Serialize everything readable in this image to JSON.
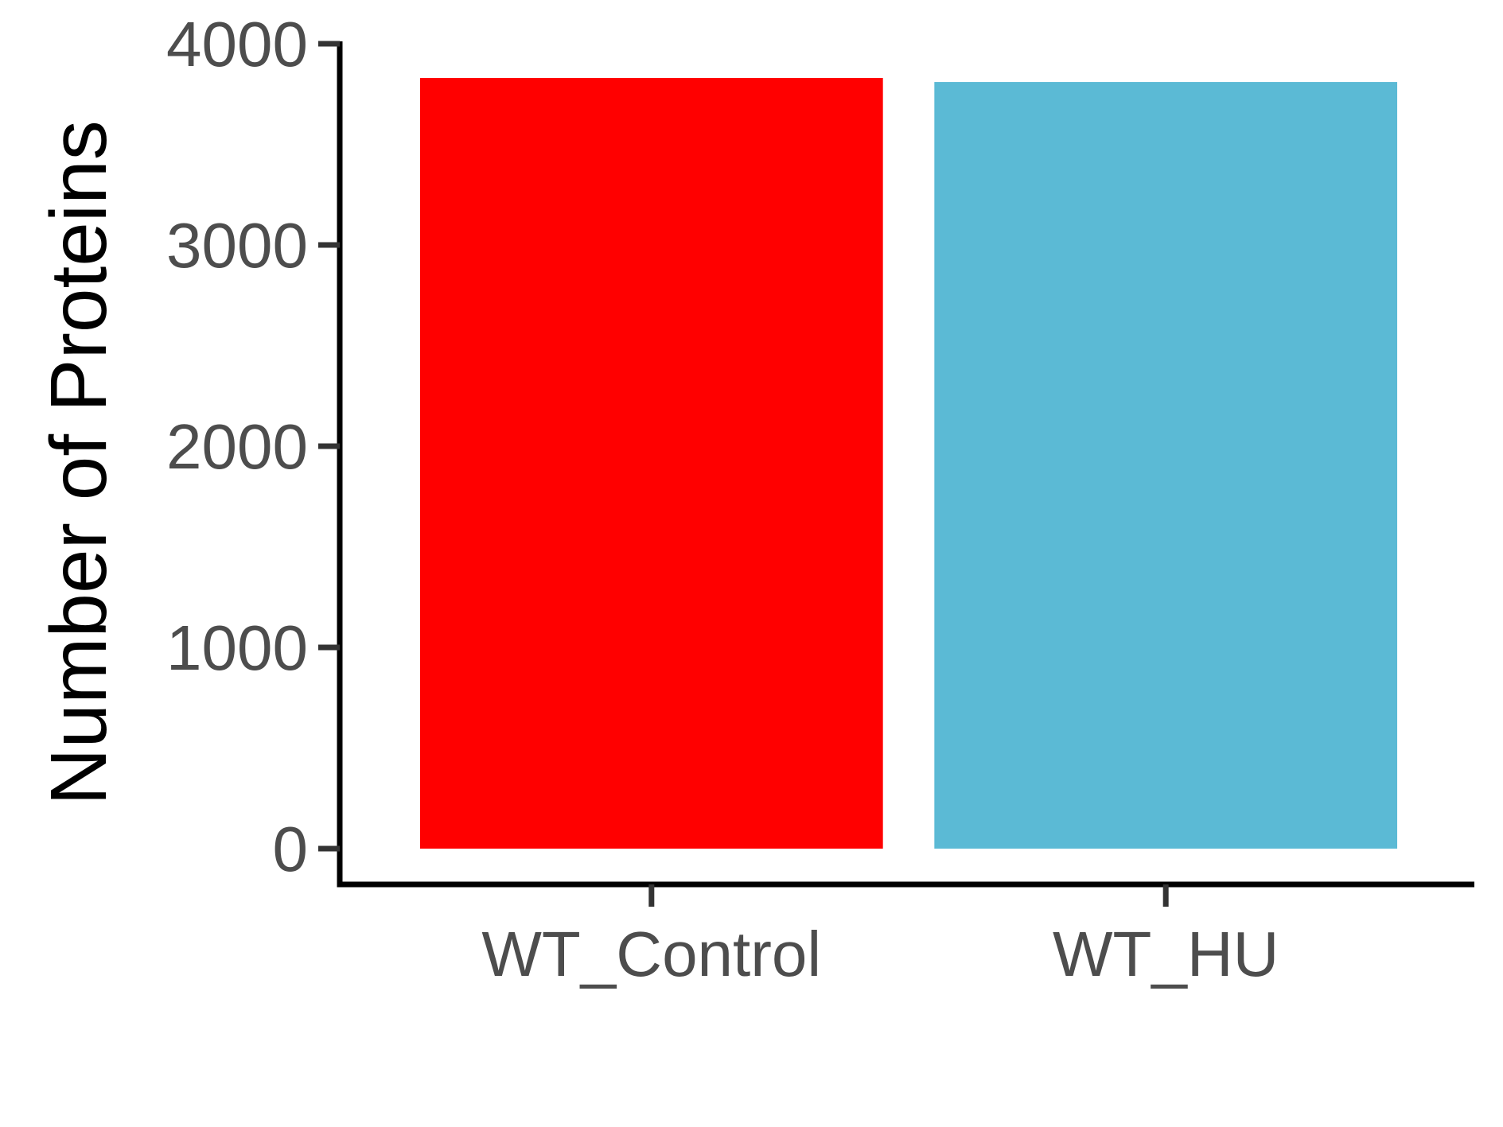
{
  "chart_data": {
    "type": "bar",
    "categories": [
      "WT_Control",
      "WT_HU"
    ],
    "values": [
      3830,
      3810
    ],
    "colors": [
      "#ff0000",
      "#5bbad5"
    ],
    "title": "",
    "xlabel": "",
    "ylabel": "Number of Proteins",
    "ylim": [
      0,
      4000
    ],
    "yticks": [
      0,
      1000,
      2000,
      3000,
      4000
    ],
    "ytick_labels": [
      "0",
      "1000",
      "2000",
      "3000",
      "4000"
    ],
    "grid": false,
    "legend": "none"
  }
}
